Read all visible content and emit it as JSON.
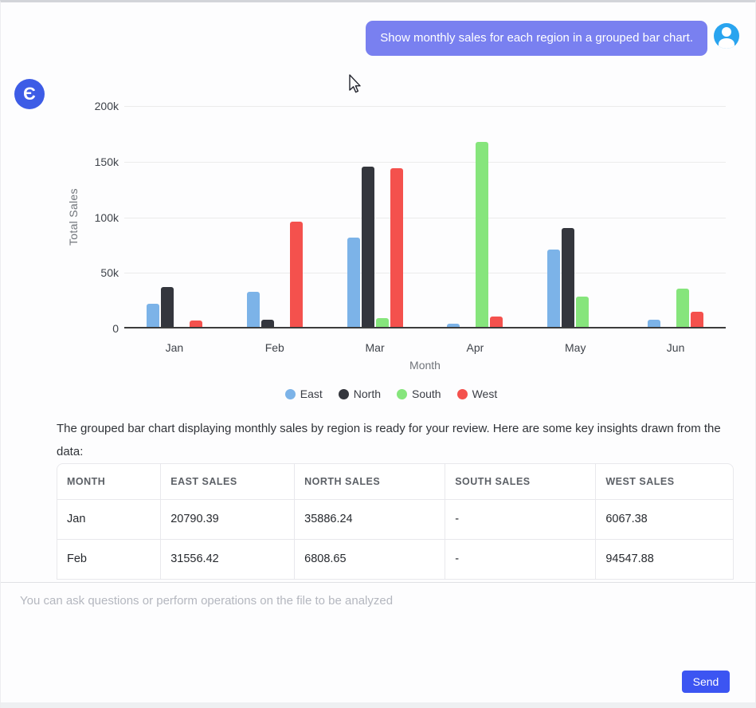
{
  "brand": {
    "logo_letter": "Є"
  },
  "chat": {
    "user_message": "Show monthly sales for each region in a grouped bar chart.",
    "assistant_paragraph": "The grouped bar chart displaying monthly sales by region is ready for your review. Here are some key insights drawn from the data:"
  },
  "chart_data": {
    "type": "bar",
    "title": "",
    "xlabel": "Month",
    "ylabel": "Total Sales",
    "ylim": [
      0,
      200000
    ],
    "yticks": [
      {
        "label": "200k",
        "value": 200000
      },
      {
        "label": "150k",
        "value": 150000
      },
      {
        "label": "100k",
        "value": 100000
      },
      {
        "label": "50k",
        "value": 50000
      },
      {
        "label": "0",
        "value": 0
      }
    ],
    "categories": [
      "Jan",
      "Feb",
      "Mar",
      "Apr",
      "May",
      "Jun"
    ],
    "series": [
      {
        "name": "East",
        "color": "#7cb3e8",
        "values": [
          20790.39,
          31556.42,
          80500,
          2900,
          69800,
          6500
        ]
      },
      {
        "name": "North",
        "color": "#34363d",
        "values": [
          35886.24,
          6808.65,
          143800,
          0,
          89200,
          0
        ]
      },
      {
        "name": "South",
        "color": "#86e57c",
        "values": [
          0,
          0,
          7900,
          166500,
          27500,
          34500
        ]
      },
      {
        "name": "West",
        "color": "#f4514d",
        "values": [
          6067.38,
          94547.88,
          142300,
          9400,
          0,
          13800
        ]
      }
    ],
    "legend_position": "bottom",
    "grid": true
  },
  "table": {
    "headers": [
      "MONTH",
      "EAST SALES",
      "NORTH SALES",
      "SOUTH SALES",
      "WEST SALES"
    ],
    "col_widths_pct": [
      15.3,
      19.8,
      22.3,
      22.3,
      20.3
    ],
    "rows": [
      [
        "Jan",
        "20790.39",
        "35886.24",
        "-",
        "6067.38"
      ],
      [
        "Feb",
        "31556.42",
        "6808.65",
        "-",
        "94547.88"
      ]
    ]
  },
  "composer": {
    "placeholder": "You can ask questions or perform operations on the file to be analyzed",
    "send_label": "Send"
  },
  "colors": {
    "bubble": "#7980f0",
    "user_avatar": "#29a4ef",
    "logo": "#3d5ce6",
    "send_button": "#3c55f2",
    "axis_line": "#3c3c3c",
    "gridline": "#ebebeb",
    "east": "#7cb3e8",
    "north": "#34363d",
    "south": "#86e57c",
    "west": "#f4514d"
  }
}
